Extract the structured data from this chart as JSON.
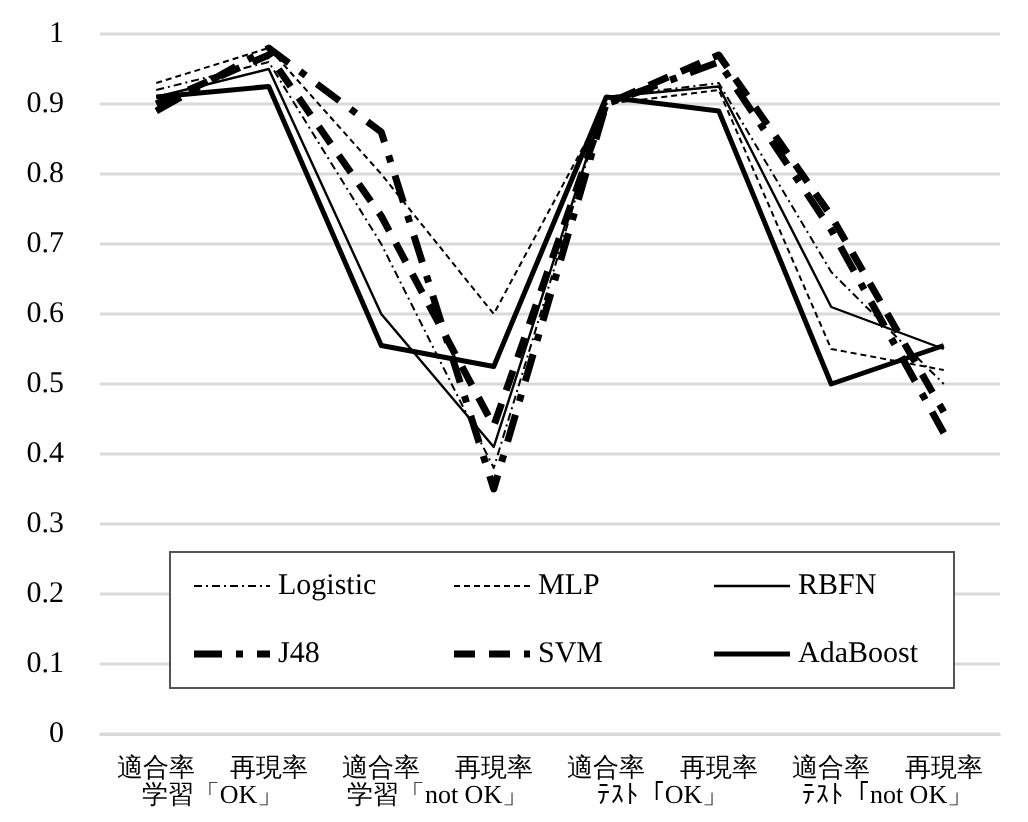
{
  "chart_data": {
    "type": "line",
    "categories": [
      "適合率",
      "再現率",
      "適合率",
      "再現率",
      "適合率",
      "再現率",
      "適合率",
      "再現率"
    ],
    "annotations": [
      "学習「OK」",
      "学習「not OK」",
      "ﾃｽﾄ「OK」",
      "ﾃｽﾄ「not OK」"
    ],
    "series": [
      {
        "name": "Logistic",
        "color": "#000000",
        "line_style": "dashdot",
        "values": [
          0.92,
          0.96,
          0.7,
          0.38,
          0.91,
          0.93,
          0.66,
          0.5
        ]
      },
      {
        "name": "MLP",
        "color": "#000000",
        "line_style": "dashed",
        "values": [
          0.93,
          0.98,
          0.8,
          0.6,
          0.9,
          0.92,
          0.55,
          0.52
        ]
      },
      {
        "name": "RBFN",
        "color": "#000000",
        "line_style": "solid",
        "values": [
          0.91,
          0.95,
          0.6,
          0.41,
          0.91,
          0.925,
          0.61,
          0.55
        ]
      },
      {
        "name": "J48",
        "color": "#000000",
        "line_style": "dashdot",
        "values": [
          0.89,
          0.98,
          0.86,
          0.35,
          0.9,
          0.96,
          0.72,
          0.43
        ]
      },
      {
        "name": "SVM",
        "color": "#000000",
        "line_style": "dashed",
        "values": [
          0.9,
          0.97,
          0.74,
          0.44,
          0.9,
          0.97,
          0.74,
          0.46
        ]
      },
      {
        "name": "AdaBoost",
        "color": "#000000",
        "line_style": "solid",
        "values": [
          0.91,
          0.925,
          0.555,
          0.525,
          0.91,
          0.89,
          0.5,
          0.555
        ]
      }
    ],
    "ylim": [
      0,
      1
    ],
    "yticks": [
      0,
      0.1,
      0.2,
      0.3,
      0.4,
      0.5,
      0.6,
      0.7,
      0.8,
      0.9,
      1
    ],
    "grid": "y",
    "legend": "bottom",
    "marker": "none"
  }
}
